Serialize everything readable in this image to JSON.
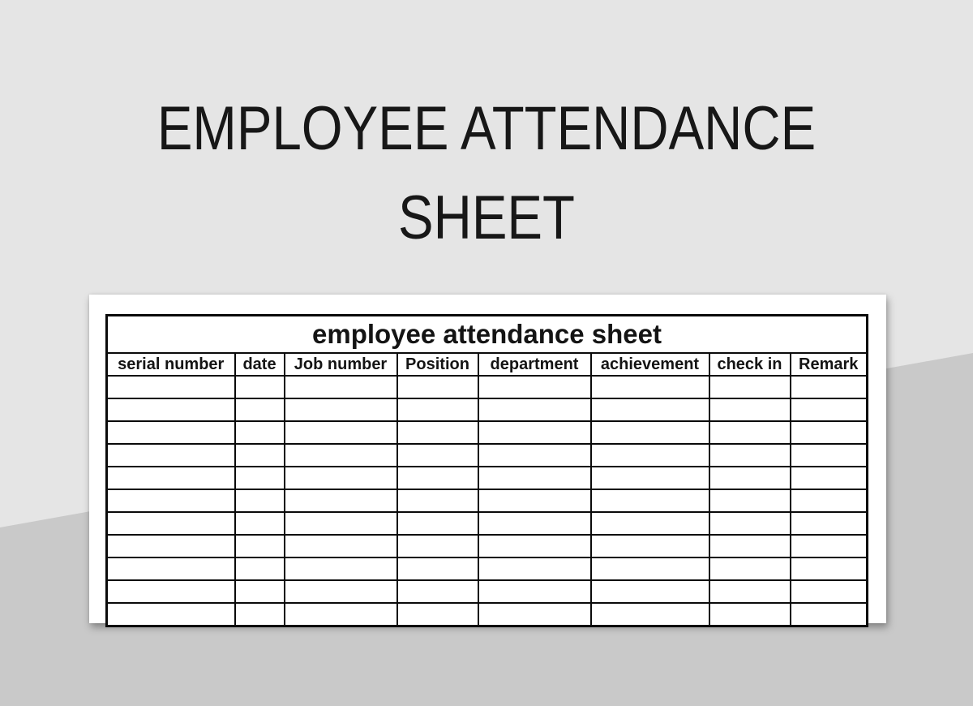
{
  "page": {
    "title_line1": "EMPLOYEE ATTENDANCE",
    "title_line2": "SHEET"
  },
  "sheet": {
    "title": "employee attendance sheet",
    "columns": [
      "serial number",
      "date",
      "Job number",
      "Position",
      "department",
      "achievement",
      "check in",
      "Remark"
    ],
    "empty_row_count": 11,
    "cell_value": ""
  },
  "colors": {
    "background_top": "#e5e5e5",
    "background_bottom": "#c9c9c9",
    "card": "#ffffff",
    "text": "#141414",
    "border": "#0a0a0a"
  }
}
